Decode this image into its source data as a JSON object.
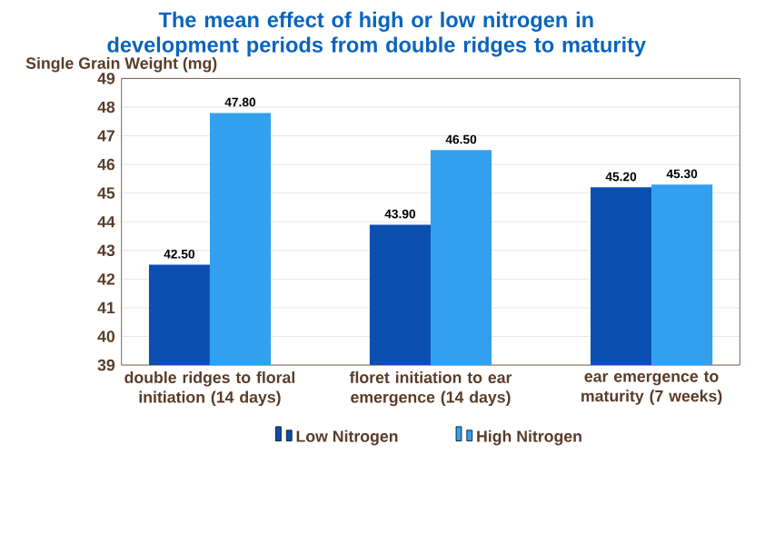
{
  "chart_data": {
    "type": "bar",
    "title": "The mean effect of high or low nitrogen in development periods from double ridges to maturity",
    "ylabel": "Single Grain Weight (mg)",
    "categories": [
      "double ridges to floral initiation (14 days)",
      "floret initiation to ear emergence (14 days)",
      "ear emergence to maturity (7 weeks)"
    ],
    "series": [
      {
        "name": "Low Nitrogen",
        "color": "#0a4fb0",
        "values": [
          42.5,
          43.9,
          45.2
        ],
        "value_labels": [
          "42.50",
          "43.90",
          "45.20"
        ]
      },
      {
        "name": "High Nitrogen",
        "color": "#33a0ee",
        "values": [
          47.8,
          46.5,
          45.3
        ],
        "value_labels": [
          "47.80",
          "46.50",
          "45.30"
        ]
      }
    ],
    "ylim": [
      39,
      49
    ],
    "yticks": [
      39,
      40,
      41,
      42,
      43,
      44,
      45,
      46,
      47,
      48,
      49
    ],
    "grid": "y",
    "legend": "bottom"
  }
}
